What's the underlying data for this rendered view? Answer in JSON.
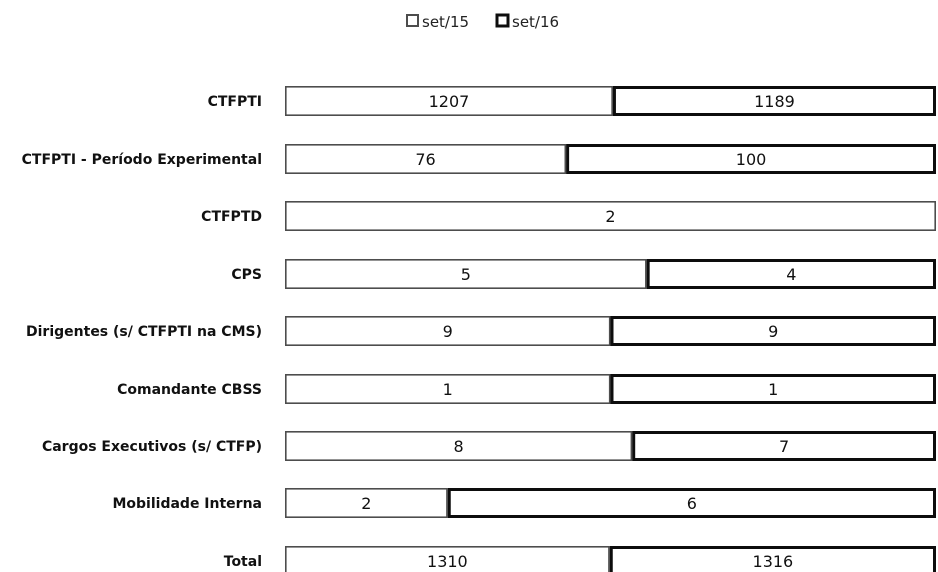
{
  "chart_data": {
    "type": "bar",
    "orientation": "horizontal",
    "stacking": "percent",
    "categories": [
      "CTFPTI",
      "CTFPTI - Período Experimental",
      "CTFPTD",
      "CPS",
      "Dirigentes (s/ CTFPTI na CMS)",
      "Comandante CBSS",
      "Cargos Executivos (s/ CTFP)",
      "Mobilidade Interna",
      "Total"
    ],
    "series": [
      {
        "name": "set/15",
        "values": [
          1207,
          76,
          2,
          5,
          9,
          1,
          8,
          2,
          1310
        ],
        "color": "#ffffff",
        "border_color": "#4d4d4d"
      },
      {
        "name": "set/16",
        "values": [
          1189,
          100,
          null,
          4,
          9,
          1,
          7,
          6,
          1316
        ],
        "color": "#ffffff",
        "border_color": "#0d0d0d"
      }
    ],
    "legend": {
      "position": "top",
      "items": [
        "set/15",
        "set/16"
      ]
    },
    "data_labels": true,
    "grid": false
  }
}
